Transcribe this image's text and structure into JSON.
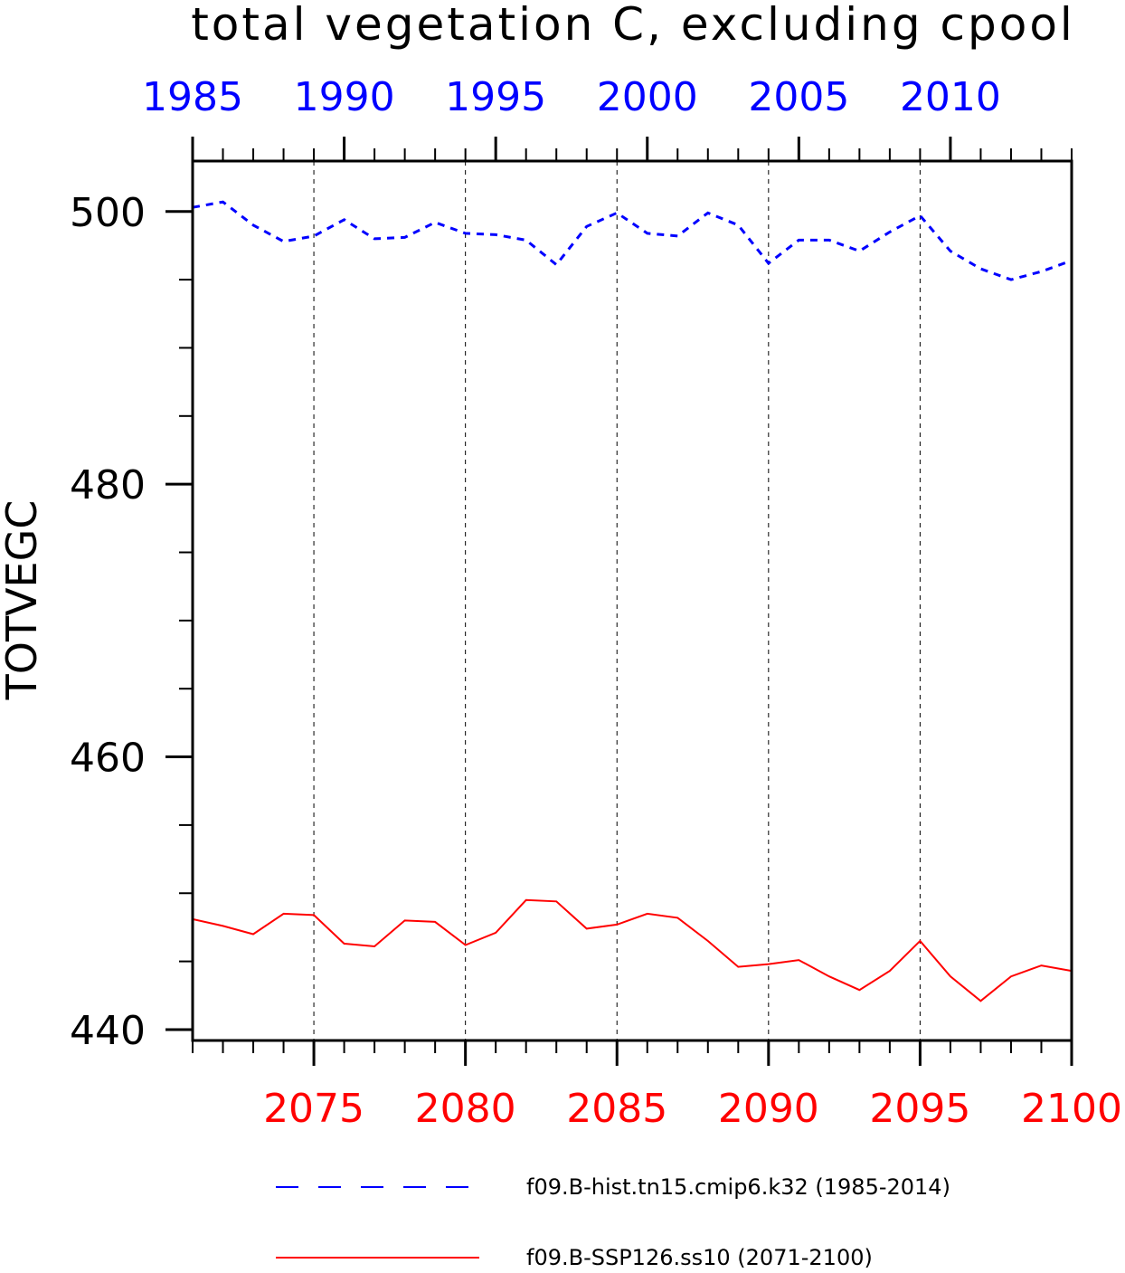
{
  "chart_data": {
    "type": "line",
    "title": "total vegetation C, excluding cpool",
    "ylabel": "TOTVEGC",
    "ylim": [
      439.2,
      503.7
    ],
    "yticks_major": [
      440,
      460,
      480,
      500
    ],
    "yticks_minor": [
      445,
      450,
      455,
      465,
      470,
      475,
      485,
      490,
      495
    ],
    "x_top": {
      "range": [
        1985,
        2014
      ],
      "tick_labels": [
        "1985",
        "1990",
        "1995",
        "2000",
        "2005",
        "2010"
      ],
      "major": [
        1985,
        1990,
        1995,
        2000,
        2005,
        2010
      ],
      "color": "#0000ff"
    },
    "x_bottom": {
      "range": [
        2071,
        2100
      ],
      "tick_labels": [
        "2075",
        "2080",
        "2085",
        "2090",
        "2095",
        "2100"
      ],
      "major": [
        2075,
        2080,
        2085,
        2090,
        2095,
        2100
      ],
      "color": "#ff0000"
    },
    "grid": "vertical-dashed",
    "series": [
      {
        "name": "f09.B-hist.tn15.cmip6.k32 (1985-2014)",
        "color": "#0000ff",
        "style": "dashed",
        "axis": "top",
        "x": [
          1985,
          1986,
          1987,
          1988,
          1989,
          1990,
          1991,
          1992,
          1993,
          1994,
          1995,
          1996,
          1997,
          1998,
          1999,
          2000,
          2001,
          2002,
          2003,
          2004,
          2005,
          2006,
          2007,
          2008,
          2009,
          2010,
          2011,
          2012,
          2013,
          2014
        ],
        "values": [
          500.3,
          500.7,
          499.0,
          497.8,
          498.2,
          499.4,
          498.0,
          498.1,
          499.2,
          498.4,
          498.3,
          497.9,
          496.1,
          498.9,
          499.9,
          498.4,
          498.2,
          499.9,
          499.0,
          496.2,
          497.9,
          497.9,
          497.1,
          498.5,
          499.7,
          497.1,
          495.8,
          495.0,
          495.6,
          496.4
        ]
      },
      {
        "name": "f09.B-SSP126.ss10 (2071-2100)",
        "color": "#ff0000",
        "style": "solid",
        "axis": "bottom",
        "x": [
          2071,
          2072,
          2073,
          2074,
          2075,
          2076,
          2077,
          2078,
          2079,
          2080,
          2081,
          2082,
          2083,
          2084,
          2085,
          2086,
          2087,
          2088,
          2089,
          2090,
          2091,
          2092,
          2093,
          2094,
          2095,
          2096,
          2097,
          2098,
          2099,
          2100
        ],
        "values": [
          448.1,
          447.6,
          447.0,
          448.5,
          448.4,
          446.3,
          446.1,
          448.0,
          447.9,
          446.2,
          447.1,
          449.5,
          449.4,
          447.4,
          447.7,
          448.5,
          448.2,
          446.5,
          444.6,
          444.8,
          445.1,
          443.9,
          442.9,
          444.3,
          446.5,
          443.9,
          442.1,
          443.9,
          444.7,
          444.3
        ]
      }
    ]
  }
}
